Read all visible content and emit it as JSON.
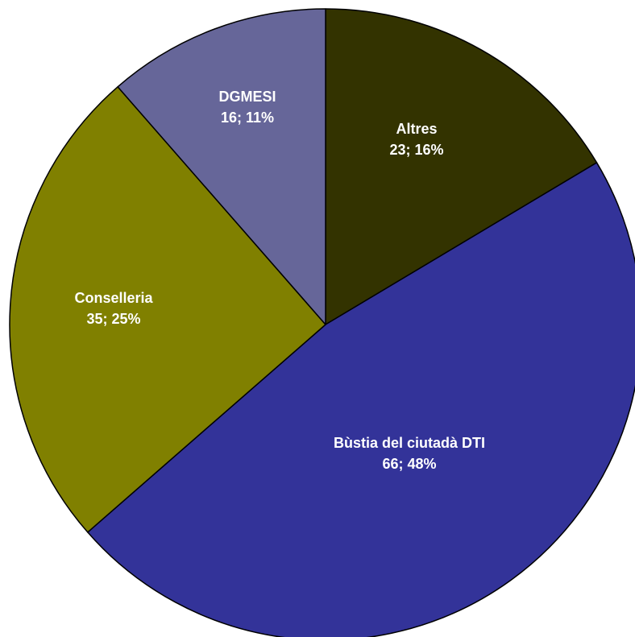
{
  "chart_data": {
    "type": "pie",
    "start_angle_deg": 0,
    "direction": "clockwise",
    "slices": [
      {
        "label": "Altres",
        "value": 23,
        "percent": "16%",
        "color": "#333300"
      },
      {
        "label": "Bùstia del ciutadà DTI",
        "value": 66,
        "percent": "48%",
        "color": "#333399"
      },
      {
        "label": "Conselleria",
        "value": 35,
        "percent": "25%",
        "color": "#808000"
      },
      {
        "label": "DGMESI",
        "value": 16,
        "percent": "11%",
        "color": "#666699"
      }
    ]
  }
}
